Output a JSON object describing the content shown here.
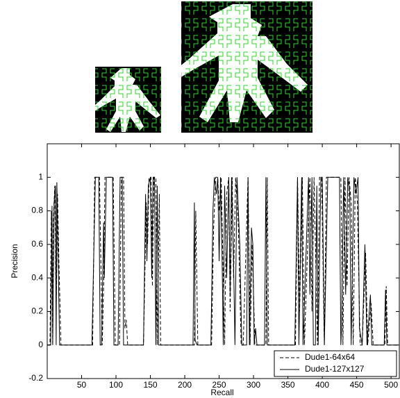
{
  "chart_data": {
    "type": "line",
    "xlabel": "Recall",
    "ylabel": "Precision",
    "xlim": [
      0,
      512
    ],
    "ylim": [
      -0.2,
      1.2
    ],
    "xticks": [
      50,
      100,
      150,
      200,
      250,
      300,
      350,
      400,
      450,
      500
    ],
    "yticks": [
      -0.2,
      0,
      0.2,
      0.4,
      0.6,
      0.8,
      1
    ],
    "legend": "lower right",
    "series": [
      {
        "name": "Dude1-64x64",
        "color": "#000000",
        "dash": true,
        "x": [
          0,
          4,
          6,
          8,
          9,
          11,
          13,
          15,
          17,
          20,
          24,
          66,
          69,
          76,
          80,
          82,
          84,
          87,
          96,
          99,
          105,
          108,
          111,
          113,
          115,
          117,
          140,
          144,
          146,
          148,
          151,
          153,
          155,
          158,
          160,
          163,
          165,
          214,
          216,
          219,
          239,
          242,
          245,
          248,
          250,
          253,
          256,
          258,
          261,
          264,
          266,
          269,
          271,
          274,
          278,
          282,
          285,
          292,
          295,
          298,
          302,
          305,
          318,
          320,
          322,
          361,
          364,
          367,
          371,
          374,
          382,
          385,
          388,
          393,
          396,
          399,
          403,
          406,
          410,
          427,
          430,
          433,
          436,
          439,
          442,
          445,
          448,
          451,
          455,
          458,
          463,
          466,
          471,
          474,
          491,
          493,
          495,
          510
        ],
        "values": [
          0,
          0,
          0.8,
          0,
          0.75,
          0.95,
          0.2,
          0.9,
          0.5,
          0,
          0,
          0,
          1,
          1,
          0,
          0.35,
          1,
          1,
          1,
          0,
          0,
          1,
          1,
          0.1,
          0.15,
          0,
          0,
          0.85,
          0.6,
          1,
          1,
          0.35,
          1,
          1,
          0,
          0.9,
          0,
          0,
          0.8,
          0,
          0,
          0.7,
          1,
          1,
          0.8,
          1,
          0.4,
          0,
          0.9,
          1,
          0.2,
          1,
          0.4,
          1,
          0.7,
          0,
          0,
          1,
          0,
          0.6,
          0,
          0,
          0,
          1,
          0,
          0,
          1,
          0.2,
          1,
          0,
          1,
          0.2,
          1,
          0,
          1,
          1,
          0,
          1,
          1,
          1,
          0,
          1,
          0.35,
          1,
          0.85,
          0,
          1,
          0.85,
          0,
          0,
          0.55,
          0,
          0.25,
          0,
          0,
          0.35,
          0,
          0
        ]
      },
      {
        "name": "Dude1-127x127",
        "color": "#000000",
        "dash": false,
        "x": [
          0,
          5,
          7,
          8,
          10,
          12,
          13,
          14,
          16,
          18,
          22,
          65,
          70,
          75,
          77,
          79,
          82,
          83,
          86,
          95,
          97,
          103,
          106,
          109,
          111,
          115,
          140,
          143,
          145,
          147,
          150,
          152,
          154,
          156,
          158,
          160,
          162,
          212,
          214,
          215,
          218,
          238,
          241,
          243,
          246,
          248,
          250,
          252,
          254,
          256,
          258,
          261,
          264,
          266,
          268,
          271,
          273,
          276,
          280,
          283,
          290,
          292,
          294,
          297,
          299,
          301,
          303,
          305,
          316,
          318,
          320,
          360,
          362,
          364,
          366,
          370,
          372,
          380,
          382,
          385,
          387,
          390,
          392,
          394,
          398,
          400,
          403,
          408,
          425,
          427,
          428,
          431,
          434,
          437,
          440,
          442,
          446,
          449,
          452,
          454,
          458,
          462,
          465,
          470,
          472,
          490,
          492,
          494,
          510
        ],
        "values": [
          0,
          0,
          0.83,
          0,
          0.85,
          0.95,
          0,
          0.97,
          0.5,
          0,
          0,
          0,
          1,
          1,
          0,
          0,
          0.73,
          0.4,
          1,
          1,
          0,
          0,
          1,
          1,
          0,
          0,
          0,
          0.9,
          0.5,
          0.95,
          1,
          0.4,
          1,
          1,
          0,
          0.95,
          0,
          0,
          0.85,
          0.03,
          0,
          0,
          0.8,
          1,
          0.9,
          1,
          0.5,
          1,
          0.6,
          0,
          0.95,
          0.4,
          1,
          0.3,
          1,
          0.5,
          0,
          1,
          0.6,
          0,
          0,
          1,
          0,
          0.7,
          0.6,
          0,
          0.1,
          0,
          0,
          1,
          0,
          0,
          0.5,
          1,
          0,
          1,
          0,
          1,
          0.3,
          1,
          0,
          0,
          0.95,
          0,
          1,
          1,
          0,
          1,
          1,
          0,
          0.1,
          1,
          0.3,
          1,
          0.9,
          0,
          1,
          0.9,
          1,
          0.1,
          0,
          0.6,
          0,
          0.3,
          0,
          0,
          0.33,
          0,
          0
        ]
      }
    ]
  }
}
